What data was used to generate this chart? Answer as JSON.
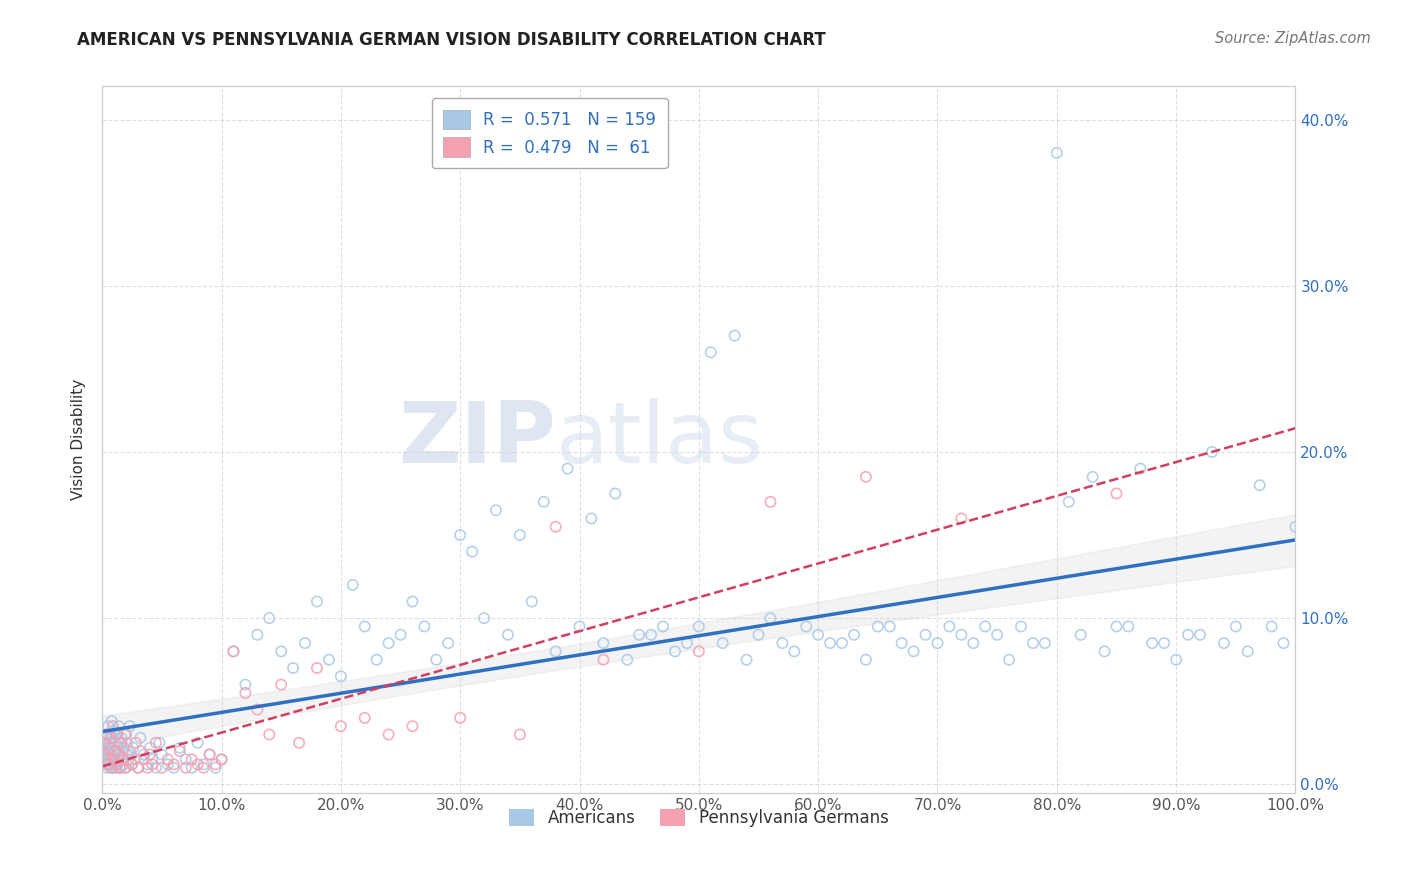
{
  "title": "AMERICAN VS PENNSYLVANIA GERMAN VISION DISABILITY CORRELATION CHART",
  "source": "Source: ZipAtlas.com",
  "ylabel": "Vision Disability",
  "xlabel": "",
  "legend_bottom_labels": [
    "Americans",
    "Pennsylvania Germans"
  ],
  "legend_R_american": "0.571",
  "legend_N_american": "159",
  "legend_R_pg": "0.479",
  "legend_N_pg": " 61",
  "xlim": [
    0,
    1.0
  ],
  "ylim": [
    -0.005,
    0.42
  ],
  "xticks": [
    0.0,
    0.1,
    0.2,
    0.3,
    0.4,
    0.5,
    0.6,
    0.7,
    0.8,
    0.9,
    1.0
  ],
  "xtick_labels": [
    "0.0%",
    "10.0%",
    "20.0%",
    "30.0%",
    "40.0%",
    "50.0%",
    "60.0%",
    "70.0%",
    "80.0%",
    "90.0%",
    "100.0%"
  ],
  "yticks": [
    0.0,
    0.1,
    0.2,
    0.3,
    0.4
  ],
  "ytick_labels_right": [
    "0.0%",
    "10.0%",
    "20.0%",
    "30.0%",
    "40.0%"
  ],
  "color_american": "#a8c8e8",
  "color_pg": "#f4a0b0",
  "trendline_american": "#3070c0",
  "trendline_pg": "#d04060",
  "conf_band_color": "#c0c0c0",
  "watermark_zip": "ZIP",
  "watermark_atlas": "atlas",
  "grid_color": "#cccccc",
  "background_color": "#ffffff",
  "american_x": [
    0.001,
    0.002,
    0.002,
    0.003,
    0.003,
    0.003,
    0.004,
    0.004,
    0.004,
    0.005,
    0.005,
    0.005,
    0.006,
    0.006,
    0.006,
    0.007,
    0.007,
    0.008,
    0.008,
    0.008,
    0.009,
    0.009,
    0.01,
    0.01,
    0.01,
    0.011,
    0.011,
    0.012,
    0.012,
    0.013,
    0.013,
    0.014,
    0.014,
    0.015,
    0.015,
    0.016,
    0.016,
    0.017,
    0.018,
    0.019,
    0.02,
    0.021,
    0.022,
    0.023,
    0.025,
    0.026,
    0.028,
    0.03,
    0.032,
    0.035,
    0.038,
    0.04,
    0.042,
    0.045,
    0.048,
    0.05,
    0.055,
    0.06,
    0.065,
    0.07,
    0.075,
    0.08,
    0.085,
    0.09,
    0.095,
    0.1,
    0.11,
    0.12,
    0.13,
    0.14,
    0.15,
    0.16,
    0.17,
    0.18,
    0.19,
    0.2,
    0.21,
    0.22,
    0.23,
    0.24,
    0.25,
    0.26,
    0.27,
    0.28,
    0.29,
    0.3,
    0.32,
    0.34,
    0.36,
    0.38,
    0.4,
    0.42,
    0.44,
    0.46,
    0.48,
    0.5,
    0.52,
    0.54,
    0.56,
    0.58,
    0.6,
    0.62,
    0.64,
    0.66,
    0.68,
    0.7,
    0.72,
    0.74,
    0.76,
    0.78,
    0.8,
    0.82,
    0.84,
    0.86,
    0.88,
    0.9,
    0.92,
    0.94,
    0.96,
    0.98,
    1.0,
    0.55,
    0.57,
    0.59,
    0.61,
    0.63,
    0.65,
    0.67,
    0.69,
    0.71,
    0.73,
    0.75,
    0.77,
    0.79,
    0.81,
    0.83,
    0.85,
    0.87,
    0.89,
    0.91,
    0.93,
    0.95,
    0.97,
    0.99,
    0.45,
    0.47,
    0.49,
    0.51,
    0.53,
    0.35,
    0.37,
    0.39,
    0.41,
    0.43,
    0.31,
    0.33,
    0.015,
    0.018,
    0.022
  ],
  "american_y": [
    0.02,
    0.015,
    0.025,
    0.012,
    0.018,
    0.03,
    0.01,
    0.022,
    0.028,
    0.015,
    0.02,
    0.035,
    0.012,
    0.025,
    0.018,
    0.01,
    0.03,
    0.015,
    0.022,
    0.038,
    0.012,
    0.028,
    0.01,
    0.02,
    0.032,
    0.015,
    0.025,
    0.01,
    0.03,
    0.012,
    0.022,
    0.018,
    0.035,
    0.01,
    0.025,
    0.015,
    0.028,
    0.02,
    0.012,
    0.03,
    0.01,
    0.025,
    0.018,
    0.035,
    0.012,
    0.022,
    0.015,
    0.01,
    0.028,
    0.018,
    0.012,
    0.022,
    0.015,
    0.01,
    0.025,
    0.018,
    0.012,
    0.01,
    0.022,
    0.015,
    0.01,
    0.025,
    0.012,
    0.018,
    0.01,
    0.015,
    0.08,
    0.06,
    0.09,
    0.1,
    0.08,
    0.07,
    0.085,
    0.11,
    0.075,
    0.065,
    0.12,
    0.095,
    0.075,
    0.085,
    0.09,
    0.11,
    0.095,
    0.075,
    0.085,
    0.15,
    0.1,
    0.09,
    0.11,
    0.08,
    0.095,
    0.085,
    0.075,
    0.09,
    0.08,
    0.095,
    0.085,
    0.075,
    0.1,
    0.08,
    0.09,
    0.085,
    0.075,
    0.095,
    0.08,
    0.085,
    0.09,
    0.095,
    0.075,
    0.085,
    0.38,
    0.09,
    0.08,
    0.095,
    0.085,
    0.075,
    0.09,
    0.085,
    0.08,
    0.095,
    0.155,
    0.09,
    0.085,
    0.095,
    0.085,
    0.09,
    0.095,
    0.085,
    0.09,
    0.095,
    0.085,
    0.09,
    0.095,
    0.085,
    0.17,
    0.185,
    0.095,
    0.19,
    0.085,
    0.09,
    0.2,
    0.095,
    0.18,
    0.085,
    0.09,
    0.095,
    0.085,
    0.26,
    0.27,
    0.15,
    0.17,
    0.19,
    0.16,
    0.175,
    0.14,
    0.165,
    0.01,
    0.015,
    0.02
  ],
  "pg_x": [
    0.001,
    0.002,
    0.003,
    0.004,
    0.005,
    0.006,
    0.007,
    0.008,
    0.009,
    0.01,
    0.011,
    0.012,
    0.013,
    0.014,
    0.015,
    0.016,
    0.017,
    0.018,
    0.019,
    0.02,
    0.022,
    0.025,
    0.028,
    0.03,
    0.032,
    0.035,
    0.038,
    0.04,
    0.042,
    0.045,
    0.05,
    0.055,
    0.06,
    0.065,
    0.07,
    0.075,
    0.08,
    0.085,
    0.09,
    0.095,
    0.1,
    0.11,
    0.12,
    0.13,
    0.14,
    0.15,
    0.165,
    0.18,
    0.2,
    0.22,
    0.24,
    0.26,
    0.3,
    0.35,
    0.38,
    0.42,
    0.5,
    0.56,
    0.64,
    0.72,
    0.85
  ],
  "pg_y": [
    0.018,
    0.025,
    0.015,
    0.03,
    0.012,
    0.022,
    0.028,
    0.01,
    0.035,
    0.015,
    0.02,
    0.012,
    0.03,
    0.018,
    0.01,
    0.025,
    0.015,
    0.022,
    0.01,
    0.03,
    0.015,
    0.012,
    0.025,
    0.01,
    0.02,
    0.015,
    0.01,
    0.018,
    0.012,
    0.025,
    0.01,
    0.015,
    0.012,
    0.02,
    0.01,
    0.015,
    0.012,
    0.01,
    0.018,
    0.012,
    0.015,
    0.08,
    0.055,
    0.045,
    0.03,
    0.06,
    0.025,
    0.07,
    0.035,
    0.04,
    0.03,
    0.035,
    0.04,
    0.03,
    0.155,
    0.075,
    0.08,
    0.17,
    0.185,
    0.16,
    0.175
  ],
  "trendline_am_intercept": 0.01,
  "trendline_am_slope": 0.14,
  "trendline_pg_intercept": 0.016,
  "trendline_pg_slope": 0.12
}
